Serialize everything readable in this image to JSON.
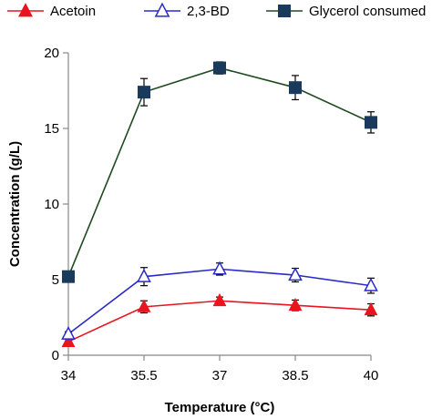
{
  "chart_data": {
    "type": "line",
    "title": "",
    "xlabel": "Temperature (°C)",
    "ylabel": "Concentration (g/L)",
    "x": [
      34,
      35.5,
      37,
      38.5,
      40
    ],
    "x_tick_labels": [
      "34",
      "35.5",
      "37",
      "38.5",
      "40"
    ],
    "xlim": [
      34,
      40
    ],
    "ylim": [
      0,
      20
    ],
    "y_ticks": [
      0,
      5,
      10,
      15,
      20
    ],
    "y_tick_labels": [
      "0",
      "5",
      "10",
      "15",
      "20"
    ],
    "grid": false,
    "legend_position": "top",
    "series": [
      {
        "name": "Acetoin",
        "color": "#e8141e",
        "marker": "triangle-filled",
        "values": [
          0.9,
          3.2,
          3.6,
          3.3,
          3.0
        ],
        "errors": [
          0.15,
          0.4,
          0.25,
          0.35,
          0.4
        ]
      },
      {
        "name": "2,3-BD",
        "color": "#2a2acc",
        "marker": "triangle-open",
        "values": [
          1.4,
          5.2,
          5.7,
          5.3,
          4.6
        ],
        "errors": [
          0.15,
          0.6,
          0.4,
          0.45,
          0.5
        ]
      },
      {
        "name": "Glycerol consumed",
        "color": "#1a3a5c",
        "line_color": "#1f4a1f",
        "marker": "square-filled",
        "values": [
          5.2,
          17.4,
          19.0,
          17.7,
          15.4
        ],
        "errors": [
          0.3,
          0.9,
          0.4,
          0.8,
          0.7
        ]
      }
    ]
  }
}
